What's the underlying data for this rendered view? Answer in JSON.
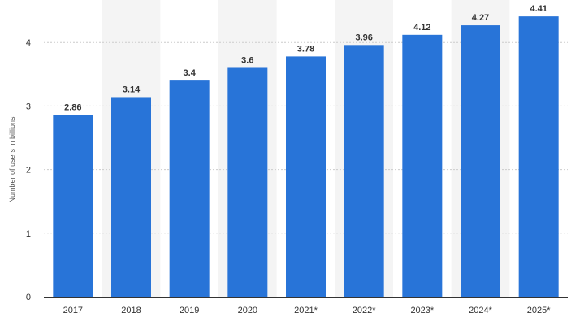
{
  "chart_data": {
    "type": "bar",
    "categories": [
      "2017",
      "2018",
      "2019",
      "2020",
      "2021*",
      "2022*",
      "2023*",
      "2024*",
      "2025*"
    ],
    "values": [
      2.86,
      3.14,
      3.4,
      3.6,
      3.78,
      3.96,
      4.12,
      4.27,
      4.41
    ],
    "value_labels": [
      "2.86",
      "3.14",
      "3.4",
      "3.6",
      "3.78",
      "3.96",
      "4.12",
      "4.27",
      "4.41"
    ],
    "title": "",
    "xlabel": "",
    "ylabel": "Number of users in billions",
    "ylim": [
      0,
      4.5
    ],
    "yticks": [
      0,
      1,
      2,
      3,
      4
    ],
    "ytick_labels": [
      "0",
      "1",
      "2",
      "3",
      "4"
    ],
    "grid": true,
    "legend": "none",
    "colors": {
      "bar": "#2874d8",
      "band": "#f4f4f4",
      "grid": "#cccccc",
      "axis": "#333333",
      "text": "#333333"
    }
  }
}
